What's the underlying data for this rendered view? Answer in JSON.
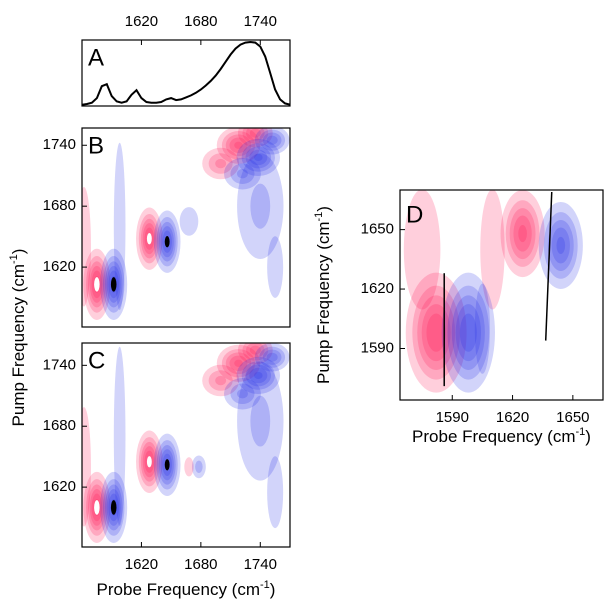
{
  "chart_data": [
    {
      "type": "line",
      "label": "A",
      "xlim": [
        1560,
        1770
      ],
      "ylim": [
        0,
        1
      ],
      "xticks": [
        1620,
        1680,
        1740
      ],
      "color": "#000000",
      "x": [
        1560,
        1565,
        1570,
        1575,
        1580,
        1585,
        1590,
        1595,
        1600,
        1605,
        1610,
        1615,
        1620,
        1625,
        1630,
        1635,
        1640,
        1645,
        1650,
        1655,
        1660,
        1665,
        1670,
        1675,
        1680,
        1685,
        1690,
        1695,
        1700,
        1705,
        1710,
        1715,
        1720,
        1725,
        1730,
        1735,
        1740,
        1745,
        1750,
        1755,
        1760,
        1765,
        1770
      ],
      "values": [
        0.02,
        0.03,
        0.05,
        0.12,
        0.3,
        0.33,
        0.15,
        0.07,
        0.05,
        0.07,
        0.17,
        0.24,
        0.12,
        0.06,
        0.05,
        0.05,
        0.06,
        0.1,
        0.12,
        0.09,
        0.1,
        0.13,
        0.16,
        0.2,
        0.25,
        0.31,
        0.38,
        0.46,
        0.56,
        0.67,
        0.78,
        0.87,
        0.93,
        0.96,
        0.97,
        0.96,
        0.9,
        0.75,
        0.5,
        0.25,
        0.1,
        0.04,
        0.02
      ]
    },
    {
      "type": "contour",
      "label": "B",
      "xlim": [
        1560,
        1770
      ],
      "ylim": [
        1561,
        1757
      ],
      "yticks": [
        1620,
        1680,
        1740
      ],
      "ylabel": {
        "text": "Pump Frequency (cm",
        "sup": "-1",
        "end": ")"
      },
      "colors": {
        "positive": "#ff1050",
        "negative": "#2028e8",
        "positive_center": "#ffffff",
        "negative_center": "#000000"
      },
      "peaks": [
        {
          "x": 1562,
          "y": 1640,
          "amp": 0.3,
          "sx": 6,
          "sy": 50
        },
        {
          "x": 1598,
          "y": 1660,
          "amp": -0.3,
          "sx": 5,
          "sy": 70
        },
        {
          "x": 1740,
          "y": 1680,
          "amp": -0.35,
          "sx": 18,
          "sy": 40
        },
        {
          "x": 1755,
          "y": 1620,
          "amp": -0.25,
          "sx": 8,
          "sy": 30
        },
        {
          "x": 1668,
          "y": 1665,
          "amp": -0.3,
          "sx": 8,
          "sy": 12
        },
        {
          "x": 1575,
          "y": 1603,
          "amp": 1.0,
          "sx": 7,
          "sy": 18
        },
        {
          "x": 1592,
          "y": 1603,
          "amp": -1.0,
          "sx": 7,
          "sy": 18
        },
        {
          "x": 1628,
          "y": 1648,
          "amp": 0.95,
          "sx": 7,
          "sy": 16
        },
        {
          "x": 1646,
          "y": 1645,
          "amp": -0.95,
          "sx": 7,
          "sy": 16
        },
        {
          "x": 1700,
          "y": 1722,
          "amp": 0.5,
          "sx": 12,
          "sy": 10
        },
        {
          "x": 1718,
          "y": 1740,
          "amp": 0.8,
          "sx": 12,
          "sy": 10
        },
        {
          "x": 1735,
          "y": 1752,
          "amp": 0.7,
          "sx": 10,
          "sy": 8
        },
        {
          "x": 1722,
          "y": 1712,
          "amp": -0.5,
          "sx": 12,
          "sy": 10
        },
        {
          "x": 1738,
          "y": 1728,
          "amp": -0.8,
          "sx": 12,
          "sy": 10
        },
        {
          "x": 1752,
          "y": 1745,
          "amp": -0.7,
          "sx": 10,
          "sy": 8
        }
      ]
    },
    {
      "type": "contour",
      "label": "C",
      "xlim": [
        1560,
        1770
      ],
      "ylim": [
        1561,
        1762
      ],
      "xticks": [
        1620,
        1680,
        1740
      ],
      "yticks": [
        1620,
        1680,
        1740
      ],
      "xlabel": {
        "text": "Probe Frequency  (cm",
        "sup": "-1",
        "end": ")"
      },
      "colors": {
        "positive": "#ff1050",
        "negative": "#2028e8",
        "positive_center": "#ffffff",
        "negative_center": "#000000"
      },
      "peaks": [
        {
          "x": 1562,
          "y": 1640,
          "amp": 0.3,
          "sx": 6,
          "sy": 50
        },
        {
          "x": 1598,
          "y": 1670,
          "amp": -0.3,
          "sx": 5,
          "sy": 75
        },
        {
          "x": 1740,
          "y": 1685,
          "amp": -0.35,
          "sx": 18,
          "sy": 45
        },
        {
          "x": 1755,
          "y": 1615,
          "amp": -0.25,
          "sx": 8,
          "sy": 35
        },
        {
          "x": 1678,
          "y": 1640,
          "amp": -0.4,
          "sx": 5,
          "sy": 8
        },
        {
          "x": 1668,
          "y": 1640,
          "amp": 0.3,
          "sx": 4,
          "sy": 8
        },
        {
          "x": 1575,
          "y": 1600,
          "amp": 1.0,
          "sx": 7,
          "sy": 18
        },
        {
          "x": 1592,
          "y": 1600,
          "amp": -1.0,
          "sx": 7,
          "sy": 18
        },
        {
          "x": 1628,
          "y": 1645,
          "amp": 0.95,
          "sx": 7,
          "sy": 16
        },
        {
          "x": 1646,
          "y": 1642,
          "amp": -0.95,
          "sx": 7,
          "sy": 16
        },
        {
          "x": 1700,
          "y": 1725,
          "amp": 0.5,
          "sx": 12,
          "sy": 10
        },
        {
          "x": 1718,
          "y": 1742,
          "amp": 0.8,
          "sx": 12,
          "sy": 10
        },
        {
          "x": 1735,
          "y": 1755,
          "amp": 0.7,
          "sx": 10,
          "sy": 8
        },
        {
          "x": 1722,
          "y": 1712,
          "amp": -0.5,
          "sx": 12,
          "sy": 10
        },
        {
          "x": 1738,
          "y": 1730,
          "amp": -0.8,
          "sx": 12,
          "sy": 10
        },
        {
          "x": 1752,
          "y": 1748,
          "amp": -0.7,
          "sx": 10,
          "sy": 8
        }
      ]
    },
    {
      "type": "contour",
      "label": "D",
      "xlim": [
        1564,
        1665
      ],
      "ylim": [
        1564,
        1670
      ],
      "xticks": [
        1590,
        1620,
        1650
      ],
      "yticks": [
        1590,
        1620,
        1650
      ],
      "xlabel": {
        "text": "Probe Frequency (cm",
        "sup": "-1",
        "end": ")"
      },
      "ylabel": {
        "text": "Pump Frequency (cm",
        "sup": "-1",
        "end": ")"
      },
      "colors": {
        "positive": "#ff1050",
        "negative": "#2028e8",
        "positive_center": "#ffffff",
        "negative_center": "#000000"
      },
      "peaks": [
        {
          "x": 1575,
          "y": 1640,
          "amp": 0.2,
          "sx": 12,
          "sy": 40
        },
        {
          "x": 1610,
          "y": 1640,
          "amp": 0.25,
          "sx": 6,
          "sy": 30
        },
        {
          "x": 1605,
          "y": 1600,
          "amp": -0.2,
          "sx": 5,
          "sy": 30
        },
        {
          "x": 1582,
          "y": 1598,
          "amp": 0.9,
          "sx": 8,
          "sy": 16
        },
        {
          "x": 1598,
          "y": 1598,
          "amp": -0.9,
          "sx": 7,
          "sy": 16
        },
        {
          "x": 1625,
          "y": 1648,
          "amp": 0.8,
          "sx": 6,
          "sy": 12
        },
        {
          "x": 1644,
          "y": 1642,
          "amp": -0.8,
          "sx": 6,
          "sy": 12
        }
      ],
      "lines": [
        {
          "x": [
            1586,
            1586
          ],
          "y": [
            1571,
            1628
          ]
        },
        {
          "x": [
            1636.5,
            1639.5
          ],
          "y": [
            1594,
            1669
          ]
        }
      ]
    }
  ]
}
